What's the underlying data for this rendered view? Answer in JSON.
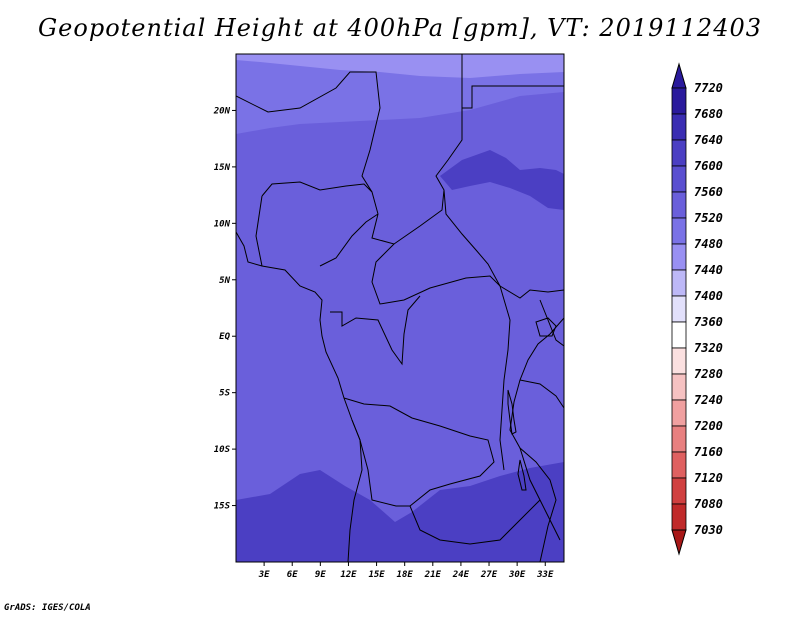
{
  "title": "Geopotential Height at 400hPa [gpm], VT: 2019112403",
  "credit": "GrADS: IGES/COLA",
  "map": {
    "lat_labels": [
      "20N",
      "15N",
      "10N",
      "5N",
      "EQ",
      "5S",
      "10S",
      "15S"
    ],
    "lat_values": [
      20,
      15,
      10,
      5,
      0,
      -5,
      -10,
      -15
    ],
    "lon_labels": [
      "3E",
      "6E",
      "9E",
      "12E",
      "15E",
      "18E",
      "21E",
      "24E",
      "27E",
      "30E",
      "33E"
    ],
    "lon_values": [
      3,
      6,
      9,
      12,
      15,
      18,
      21,
      24,
      27,
      30,
      33
    ],
    "lon_range": [
      0,
      35
    ],
    "lat_range": [
      -20,
      25
    ],
    "base_color": "#6a5fdb",
    "south_color": "#4b3fc3",
    "north_color": "#7a72e6",
    "far_north_color": "#9990f2"
  },
  "colorbar": {
    "levels": [
      "7720",
      "7680",
      "7640",
      "7600",
      "7560",
      "7520",
      "7480",
      "7440",
      "7400",
      "7360",
      "7320",
      "7280",
      "7240",
      "7200",
      "7160",
      "7120",
      "7080",
      "7030"
    ],
    "colors": [
      "#2a1a9c",
      "#3a2db2",
      "#4b3fc3",
      "#5a4fd0",
      "#6a5fdb",
      "#7a72e6",
      "#9990f2",
      "#bdb8f7",
      "#e2e0fb",
      "#ffffff",
      "#fbe0e0",
      "#f6c2c2",
      "#f0a0a0",
      "#e88080",
      "#df6060",
      "#d04040",
      "#c02a2a",
      "#a81818"
    ]
  }
}
